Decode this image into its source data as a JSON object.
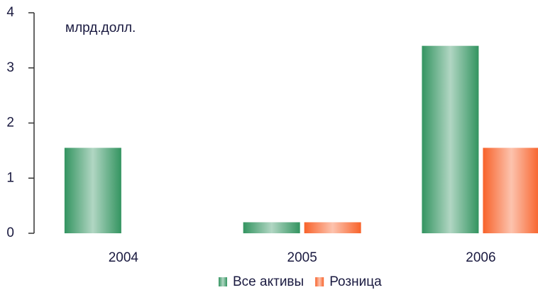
{
  "chart_data": {
    "type": "bar",
    "annotation": "млрд.долл.",
    "categories": [
      "2004",
      "2005",
      "2006"
    ],
    "series": [
      {
        "name": "Все активы",
        "color": "#339460",
        "values": [
          1.55,
          0.2,
          3.4
        ]
      },
      {
        "name": "Розница",
        "color": "#f8622a",
        "values": [
          null,
          0.2,
          1.55
        ]
      }
    ],
    "ylim": [
      0,
      4
    ],
    "yticks": [
      0,
      1,
      2,
      3,
      4
    ],
    "grid": false,
    "legend": "bottom"
  }
}
